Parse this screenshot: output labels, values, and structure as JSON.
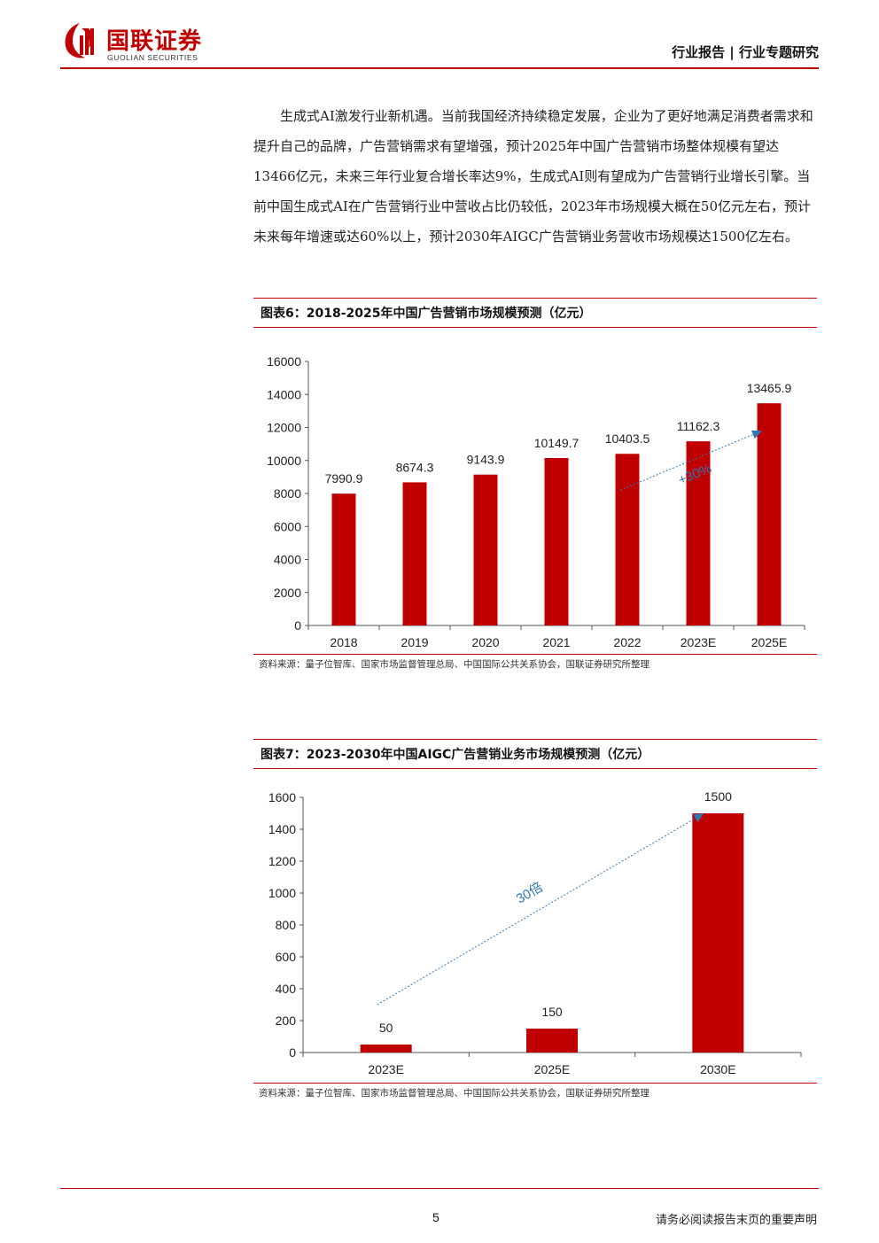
{
  "header": {
    "logo_cn": "国联证券",
    "logo_en": "GUOLIAN SECURITIES",
    "report_type": "行业报告 | 行业专题研究"
  },
  "paragraph": "生成式AI激发行业新机遇。当前我国经济持续稳定发展，企业为了更好地满足消费者需求和提升自己的品牌，广告营销需求有望增强，预计2025年中国广告营销市场整体规模有望达13466亿元，未来三年行业复合增长率达9%，生成式AI则有望成为广告营销行业增长引擎。当前中国生成式AI在广告营销行业中营收占比仍较低，2023年市场规模大概在50亿元左右，预计未来每年增速或达60%以上，预计2030年AIGC广告营销业务营收市场规模达1500亿左右。",
  "figure1": {
    "title": "图表6：2018-2025年中国广告营销市场规模预测（亿元）",
    "source": "资料来源：量子位智库、国家市场监督管理总局、中国国际公共关系协会，国联证券研究所整理"
  },
  "figure2": {
    "title": "图表7：2023-2030年中国AIGC广告营销业务市场规模预测（亿元）",
    "source": "资料来源：量子位智库、国家市场监督管理总局、中国国际公共关系协会，国联证券研究所整理"
  },
  "chart_data": [
    {
      "type": "bar",
      "title": "图表6：2018-2025年中国广告营销市场规模预测（亿元）",
      "categories": [
        "2018",
        "2019",
        "2020",
        "2021",
        "2022",
        "2023E",
        "2025E"
      ],
      "values": [
        7990.9,
        8674.3,
        9143.9,
        10149.7,
        10403.5,
        11162.3,
        13465.9
      ],
      "data_labels": [
        "7990.9",
        "8674.3",
        "9143.9",
        "10149.7",
        "10403.5",
        "11162.3",
        "13465.9"
      ],
      "ylim": [
        0,
        16000
      ],
      "yticks": [
        0,
        2000,
        4000,
        6000,
        8000,
        10000,
        12000,
        14000,
        16000
      ],
      "bar_color": "#c00000",
      "annotation": {
        "text": "+30%",
        "color": "#2e75b6",
        "from_category": "2022",
        "to_category": "2025E"
      }
    },
    {
      "type": "bar",
      "title": "图表7：2023-2030年中国AIGC广告营销业务市场规模预测（亿元）",
      "categories": [
        "2023E",
        "2025E",
        "2030E"
      ],
      "values": [
        50,
        150,
        1500
      ],
      "data_labels": [
        "50",
        "150",
        "1500"
      ],
      "ylim": [
        0,
        1600
      ],
      "yticks": [
        0,
        200,
        400,
        600,
        800,
        1000,
        1200,
        1400,
        1600
      ],
      "bar_color": "#c00000",
      "annotation": {
        "text": "30倍",
        "color": "#2e75b6",
        "from_category": "2023E",
        "to_category": "2030E"
      }
    }
  ],
  "footer": {
    "page_number": "5",
    "disclaimer": "请务必阅读报告末页的重要声明"
  }
}
